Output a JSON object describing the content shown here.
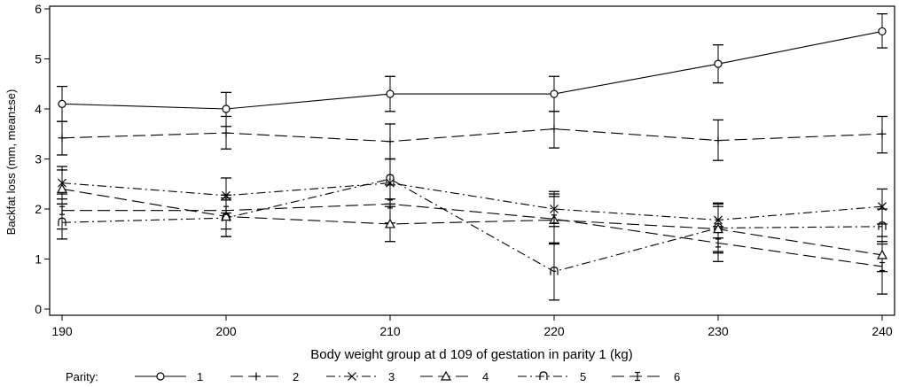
{
  "chart_data": {
    "type": "line",
    "title": "",
    "xlabel": "Body weight group at d 109 of gestation in parity 1 (kg)",
    "ylabel": "Backfat loss (mm, mean±se)",
    "x": [
      190,
      200,
      210,
      220,
      230,
      240
    ],
    "xlim": [
      190,
      240
    ],
    "ylim": [
      0,
      6
    ],
    "xticks": [
      190,
      200,
      210,
      220,
      230,
      240
    ],
    "yticks": [
      0,
      1,
      2,
      3,
      4,
      5,
      6
    ],
    "grid": false,
    "error_bars": "mean ± se",
    "legend": {
      "title": "Parity:",
      "position": "bottom"
    },
    "series": [
      {
        "name": "1",
        "marker": "circle",
        "dash": "solid",
        "values": [
          4.1,
          4.0,
          4.3,
          4.3,
          4.9,
          5.55
        ],
        "err_low": [
          3.75,
          3.65,
          3.95,
          3.95,
          4.52,
          5.22
        ],
        "err_high": [
          4.45,
          4.33,
          4.65,
          4.65,
          5.28,
          5.9
        ]
      },
      {
        "name": "2",
        "marker": "plus",
        "dash": "long-dash",
        "values": [
          3.42,
          3.52,
          3.35,
          3.6,
          3.37,
          3.5
        ],
        "err_low": [
          3.08,
          3.2,
          3.0,
          3.22,
          2.97,
          3.12
        ],
        "err_high": [
          3.75,
          3.85,
          3.7,
          3.95,
          3.78,
          3.85
        ]
      },
      {
        "name": "3",
        "marker": "x",
        "dash": "dash-dot",
        "values": [
          2.52,
          2.27,
          2.52,
          2.0,
          1.78,
          2.05
        ],
        "err_low": [
          2.2,
          1.92,
          2.05,
          1.65,
          1.42,
          1.7
        ],
        "err_high": [
          2.85,
          2.62,
          3.0,
          2.35,
          2.12,
          2.4
        ]
      },
      {
        "name": "4",
        "marker": "triangle",
        "dash": "long-dash",
        "values": [
          2.4,
          1.85,
          1.7,
          1.78,
          1.6,
          1.08
        ],
        "err_low": [
          2.1,
          1.45,
          1.35,
          1.32,
          1.15,
          0.75
        ],
        "err_high": [
          2.78,
          2.22,
          2.1,
          2.25,
          2.05,
          1.45
        ]
      },
      {
        "name": "5",
        "marker": "hook",
        "dash": "dash-dot",
        "values": [
          1.73,
          1.82,
          2.6,
          0.75,
          1.62,
          1.65
        ],
        "err_low": [
          1.4,
          1.45,
          2.2,
          0.18,
          1.12,
          1.3
        ],
        "err_high": [
          2.1,
          2.18,
          3.0,
          1.3,
          2.1,
          2.0
        ]
      },
      {
        "name": "6",
        "marker": "capped-bar",
        "dash": "long-dash",
        "values": [
          1.97,
          1.97,
          2.1,
          1.8,
          1.32,
          0.85
        ],
        "err_low": [
          1.6,
          1.6,
          1.72,
          1.32,
          0.95,
          0.3
        ],
        "err_high": [
          2.3,
          2.28,
          2.48,
          2.3,
          1.65,
          1.35
        ]
      }
    ]
  }
}
